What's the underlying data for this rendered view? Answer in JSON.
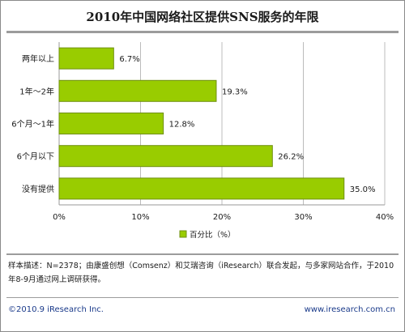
{
  "chart_data": {
    "type": "bar",
    "orientation": "horizontal",
    "title": "2010年中国网络社区提供SNS服务的年限",
    "categories": [
      "两年以上",
      "1年～2年",
      "6个月～1年",
      "6个月以下",
      "没有提供"
    ],
    "values": [
      6.7,
      19.3,
      12.8,
      26.2,
      35.0
    ],
    "value_labels": [
      "6.7%",
      "19.3%",
      "12.8%",
      "26.2%",
      "35.0%"
    ],
    "xlim": [
      0,
      40
    ],
    "x_ticks": [
      "0%",
      "10%",
      "20%",
      "30%",
      "40%"
    ],
    "legend": {
      "label": "百分比（%）",
      "position": "bottom"
    },
    "grid": true,
    "colors": {
      "bar_fill": "#99cc00",
      "bar_stroke": "#6f8f10",
      "grid": "#bcbcbc",
      "axis": "#9a9a9a"
    }
  },
  "note": "样本描述：N=2378；由康盛创想（Comsenz）和艾瑞咨询（iResearch）联合发起，与多家网站合作，于2010年8-9月通过网上调研获得。",
  "footer": {
    "copyright": "©2010.9 iResearch Inc.",
    "website": "www.iresearch.com.cn"
  }
}
